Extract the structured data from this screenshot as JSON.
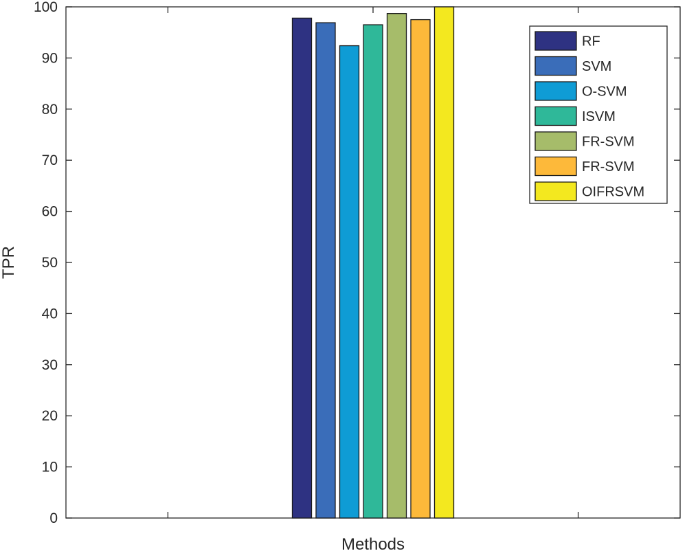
{
  "chart_data": {
    "type": "bar",
    "title": "",
    "xlabel": "Methods",
    "ylabel": "TPR",
    "ylim": [
      0,
      100
    ],
    "yticks": [
      0,
      10,
      20,
      30,
      40,
      50,
      60,
      70,
      80,
      90,
      100
    ],
    "grid": false,
    "legend_position": "top-right",
    "series": [
      {
        "name": "RF",
        "value": 97.8,
        "color": "#2E3282"
      },
      {
        "name": "SVM",
        "value": 96.9,
        "color": "#3A6DB9"
      },
      {
        "name": "O-SVM",
        "value": 92.4,
        "color": "#0F9CD5"
      },
      {
        "name": "ISVM",
        "value": 96.5,
        "color": "#2FB899"
      },
      {
        "name": "FR-SVM",
        "value": 98.7,
        "color": "#A6BC6A"
      },
      {
        "name": "FR-SVM",
        "value": 97.5,
        "color": "#FDB93A"
      },
      {
        "name": "OIFRSVM",
        "value": 100,
        "color": "#F3E81F"
      }
    ]
  }
}
